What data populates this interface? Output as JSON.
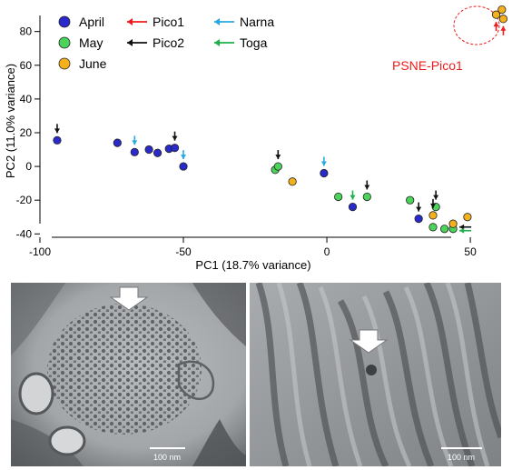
{
  "chart_data": {
    "type": "scatter",
    "title": "",
    "xlabel": "PC1 (18.7% variance)",
    "ylabel": "PC2 (11.0% variance)",
    "xlim": [
      -100,
      62
    ],
    "ylim": [
      -42,
      96
    ],
    "xticks": [
      -100,
      -50,
      0,
      50
    ],
    "yticks": [
      -40,
      -20,
      0,
      20,
      40,
      60,
      80
    ],
    "grid": false,
    "legend_position": "top-left",
    "series": [
      {
        "name": "April",
        "color": "#2a2aca",
        "points": [
          {
            "x": -94,
            "y": 15.5
          },
          {
            "x": -73,
            "y": 14
          },
          {
            "x": -67,
            "y": 8.5
          },
          {
            "x": -62,
            "y": 10
          },
          {
            "x": -59,
            "y": 8
          },
          {
            "x": -55,
            "y": 10.5
          },
          {
            "x": -53,
            "y": 11
          },
          {
            "x": -50,
            "y": 0
          },
          {
            "x": -1,
            "y": -4
          },
          {
            "x": 9,
            "y": -24
          },
          {
            "x": 32,
            "y": -31
          }
        ]
      },
      {
        "name": "May",
        "color": "#4cd45a",
        "points": [
          {
            "x": -18,
            "y": -2
          },
          {
            "x": -17,
            "y": 0
          },
          {
            "x": 4,
            "y": -18
          },
          {
            "x": 14,
            "y": -18
          },
          {
            "x": 29,
            "y": -20
          },
          {
            "x": 37,
            "y": -36
          },
          {
            "x": 38,
            "y": -24
          },
          {
            "x": 41,
            "y": -37
          },
          {
            "x": 44,
            "y": -37
          }
        ]
      },
      {
        "name": "June",
        "color": "#f5b11c",
        "points": [
          {
            "x": -12,
            "y": -9
          },
          {
            "x": 37,
            "y": -29
          },
          {
            "x": 44,
            "y": -34
          },
          {
            "x": 49,
            "y": -30
          },
          {
            "x": 59,
            "y": 90
          },
          {
            "x": 61,
            "y": 93
          },
          {
            "x": 61.5,
            "y": 87.5
          }
        ]
      }
    ],
    "virus_legend": [
      {
        "name": "Pico1",
        "color": "#ee1c1c"
      },
      {
        "name": "Pico2",
        "color": "#111111"
      },
      {
        "name": "Narna",
        "color": "#29a9e0"
      },
      {
        "name": "Toga",
        "color": "#20b04a"
      }
    ],
    "virus_markers": [
      {
        "virus": "Pico2",
        "direction": "down",
        "x": -94,
        "y": 15.5
      },
      {
        "virus": "Narna",
        "direction": "down",
        "x": -67,
        "y": 8.5
      },
      {
        "virus": "Pico2",
        "direction": "down",
        "x": -53,
        "y": 11
      },
      {
        "virus": "Narna",
        "direction": "down",
        "x": -50,
        "y": 0
      },
      {
        "virus": "Pico2",
        "direction": "down",
        "x": -17,
        "y": 0
      },
      {
        "virus": "Narna",
        "direction": "down",
        "x": -1,
        "y": -4
      },
      {
        "virus": "Toga",
        "direction": "down",
        "x": 9,
        "y": -24
      },
      {
        "virus": "Pico2",
        "direction": "down",
        "x": 14,
        "y": -18
      },
      {
        "virus": "Pico2",
        "direction": "down",
        "x": 32,
        "y": -31
      },
      {
        "virus": "Pico2",
        "direction": "down",
        "x": 37,
        "y": -29
      },
      {
        "virus": "Pico2",
        "direction": "down",
        "x": 38,
        "y": -24
      },
      {
        "virus": "Pico2",
        "direction": "left",
        "x": 44,
        "y": -37
      },
      {
        "virus": "Toga",
        "direction": "left",
        "x": 44,
        "y": -37
      },
      {
        "virus": "Pico1",
        "direction": "up",
        "x": 59,
        "y": 90
      },
      {
        "virus": "Pico1",
        "direction": "up",
        "x": 61.5,
        "y": 87.5
      }
    ],
    "annotation": {
      "text": "PSNE-Pico1",
      "color": "#ee1c1c"
    }
  },
  "micrographs": [
    {
      "scale_label": "100 nm"
    },
    {
      "scale_label": "100 nm"
    }
  ]
}
